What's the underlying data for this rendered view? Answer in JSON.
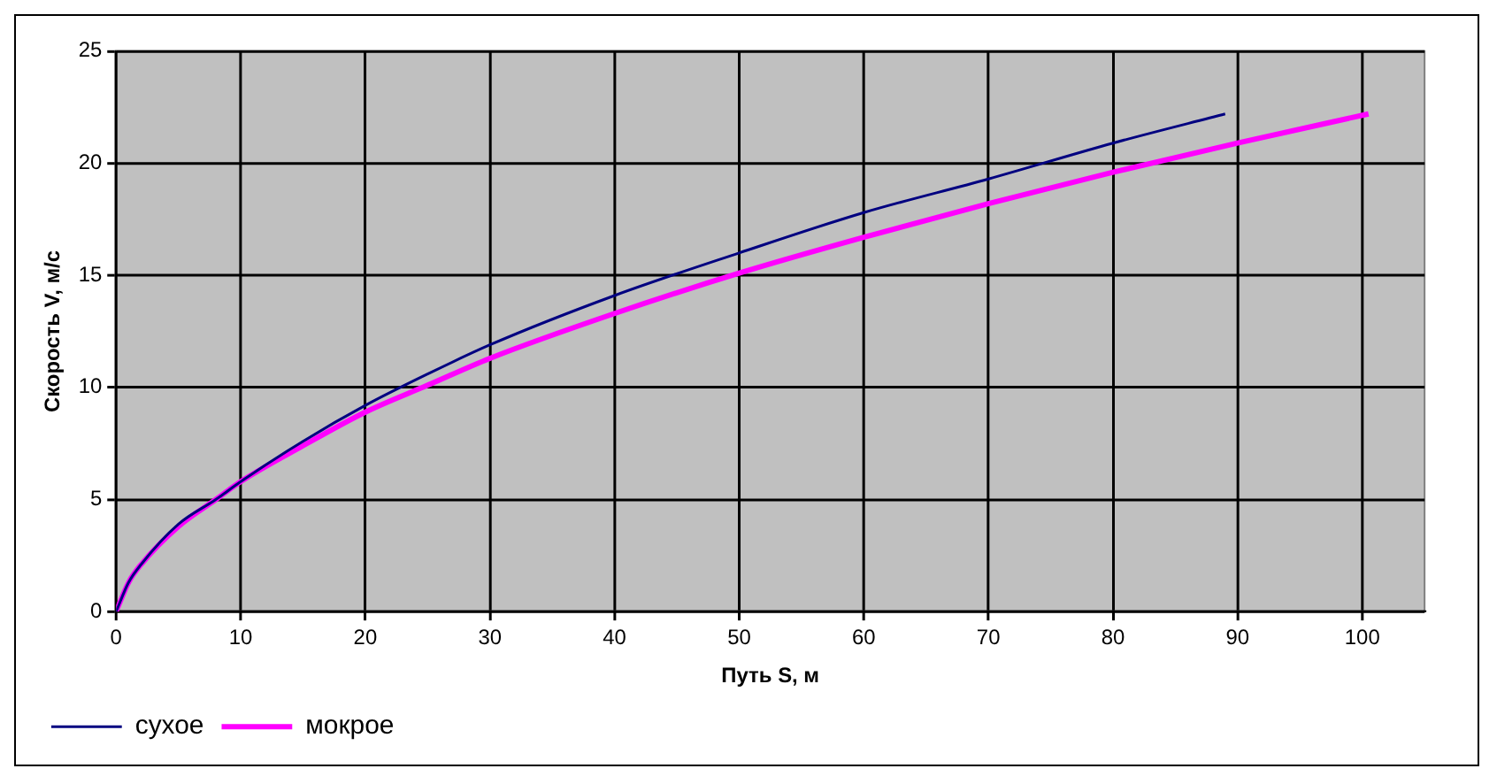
{
  "chart_data": {
    "type": "line",
    "xlabel": "Путь S, м",
    "ylabel": "Скорость V, м/с",
    "xlim": [
      0,
      105
    ],
    "xticks": [
      0,
      10,
      20,
      30,
      40,
      50,
      60,
      70,
      80,
      90,
      100
    ],
    "ylim": [
      0,
      25
    ],
    "yticks": [
      0,
      5,
      10,
      15,
      20,
      25
    ],
    "grid": true,
    "legend": "bottom left",
    "marker": "none",
    "line_style": "solid",
    "series": [
      {
        "name": "сухое",
        "color": "#000080",
        "x": [
          0,
          1,
          2,
          5,
          8,
          10,
          15,
          20,
          25,
          30,
          40,
          50,
          60,
          70,
          80,
          89
        ],
        "values": [
          0,
          1.3,
          2.1,
          3.9,
          5.0,
          5.8,
          7.6,
          9.2,
          10.6,
          11.9,
          14.1,
          16.0,
          17.8,
          19.3,
          20.9,
          22.2
        ]
      },
      {
        "name": "мокрое",
        "color": "#ff00ff",
        "x": [
          0,
          1,
          2,
          5,
          8,
          10,
          15,
          20,
          25,
          30,
          40,
          50,
          60,
          70,
          80,
          90,
          100.5
        ],
        "values": [
          0,
          1.3,
          2.1,
          3.8,
          5.0,
          5.8,
          7.4,
          8.9,
          10.1,
          11.3,
          13.3,
          15.1,
          16.7,
          18.2,
          19.6,
          20.9,
          22.2
        ]
      }
    ]
  }
}
